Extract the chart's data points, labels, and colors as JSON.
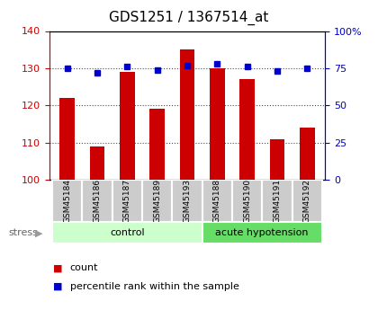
{
  "title": "GDS1251 / 1367514_at",
  "samples": [
    "GSM45184",
    "GSM45186",
    "GSM45187",
    "GSM45189",
    "GSM45193",
    "GSM45188",
    "GSM45190",
    "GSM45191",
    "GSM45192"
  ],
  "counts": [
    122,
    109,
    129,
    119,
    135,
    130,
    127,
    111,
    114
  ],
  "percentiles": [
    75,
    72,
    76,
    74,
    77,
    78,
    76,
    73,
    75
  ],
  "ylim_left": [
    100,
    140
  ],
  "ylim_right": [
    0,
    100
  ],
  "yticks_left": [
    100,
    110,
    120,
    130,
    140
  ],
  "yticks_right": [
    0,
    25,
    50,
    75,
    100
  ],
  "bar_color": "#cc0000",
  "marker_color": "#0000cc",
  "bar_baseline": 100,
  "n_control": 5,
  "n_acute": 4,
  "control_label": "control",
  "acute_label": "acute hypotension",
  "control_color": "#ccffcc",
  "acute_color": "#66dd66",
  "tick_label_bg": "#cccccc",
  "stress_label": "stress",
  "legend_count_label": "count",
  "legend_pct_label": "percentile rank within the sample",
  "grid_color": "#000000",
  "title_color": "#000000",
  "left_axis_color": "#cc0000",
  "right_axis_color": "#0000cc"
}
